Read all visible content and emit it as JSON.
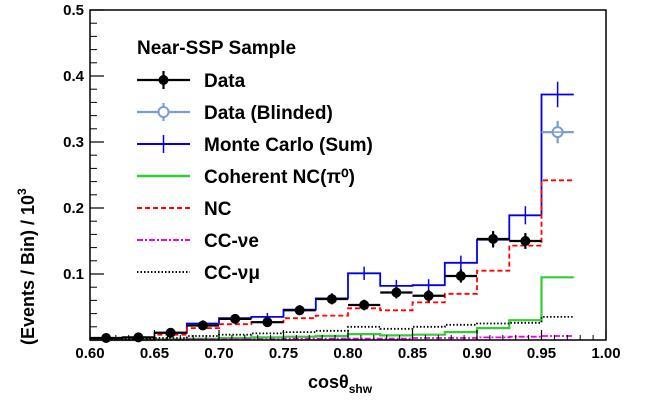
{
  "chart_data": {
    "type": "line",
    "xlabel": "cosθshw",
    "ylabel": "(Events / Bin) / 10³",
    "xlim": [
      0.6,
      1.0
    ],
    "ylim": [
      0,
      0.5
    ],
    "x_ticks": [
      "0.60",
      "0.65",
      "0.70",
      "0.75",
      "0.80",
      "0.85",
      "0.90",
      "0.95",
      "1.00"
    ],
    "y_ticks": [
      "0.1",
      "0.2",
      "0.3",
      "0.4",
      "0.5"
    ],
    "bin_edges": [
      0.6,
      0.625,
      0.65,
      0.675,
      0.7,
      0.725,
      0.75,
      0.775,
      0.8,
      0.825,
      0.85,
      0.875,
      0.9,
      0.925,
      0.95,
      0.975,
      1.0
    ],
    "legend": {
      "position": "upper-left",
      "header": "Near-SSP Sample",
      "entries": [
        {
          "key": "data",
          "label": "Data"
        },
        {
          "key": "data_blinded",
          "label": "Data (Blinded)"
        },
        {
          "key": "mc_sum",
          "label": "Monte Carlo (Sum)"
        },
        {
          "key": "coherent",
          "label": "Coherent NC(π⁰)"
        },
        {
          "key": "nc",
          "label": "NC"
        },
        {
          "key": "cc_nue",
          "label": "CC-νe"
        },
        {
          "key": "cc_numu",
          "label": "CC-νμ"
        }
      ]
    },
    "series": [
      {
        "key": "mc_sum",
        "color": "#0000ee",
        "style": "hist",
        "values": [
          0.002,
          0.004,
          0.011,
          0.025,
          0.033,
          0.035,
          0.046,
          0.063,
          0.101,
          0.082,
          0.083,
          0.117,
          0.152,
          0.189,
          0.372,
          null
        ]
      },
      {
        "key": "nc",
        "color": "#ff0000",
        "style": "hist-dashed",
        "values": [
          0.001,
          0.003,
          0.008,
          0.018,
          0.024,
          0.027,
          0.033,
          0.037,
          0.048,
          0.045,
          0.057,
          0.07,
          0.105,
          0.143,
          0.242,
          null
        ]
      },
      {
        "key": "coherent",
        "color": "#33cc33",
        "style": "hist",
        "values": [
          0.0,
          0.0,
          0.001,
          0.002,
          0.003,
          0.004,
          0.005,
          0.006,
          0.009,
          0.007,
          0.008,
          0.012,
          0.018,
          0.03,
          0.095,
          null
        ]
      },
      {
        "key": "cc_numu",
        "color": "#000000",
        "style": "hist-dotted",
        "values": [
          0.001,
          0.001,
          0.003,
          0.006,
          0.008,
          0.01,
          0.012,
          0.014,
          0.02,
          0.017,
          0.02,
          0.023,
          0.025,
          0.026,
          0.035,
          null
        ]
      },
      {
        "key": "cc_nue",
        "color": "#ee00ee",
        "style": "hist-dashdot",
        "values": [
          0.0,
          0.0,
          0.0,
          0.001,
          0.001,
          0.001,
          0.002,
          0.002,
          0.002,
          0.002,
          0.003,
          0.003,
          0.004,
          0.005,
          0.006,
          null
        ]
      },
      {
        "key": "data",
        "color": "#000000",
        "style": "points",
        "values": [
          0.003,
          0.004,
          0.011,
          0.022,
          0.032,
          0.027,
          0.045,
          0.062,
          0.053,
          0.072,
          0.067,
          0.097,
          0.153,
          0.15,
          null,
          null
        ],
        "errors": [
          0.001,
          0.002,
          0.003,
          0.005,
          0.006,
          0.006,
          0.007,
          0.008,
          0.008,
          0.009,
          0.009,
          0.01,
          0.012,
          0.012,
          null,
          null
        ]
      },
      {
        "key": "data_blinded",
        "color": "#7b9dd0",
        "style": "points-open",
        "values": [
          null,
          null,
          null,
          null,
          null,
          null,
          null,
          null,
          null,
          null,
          null,
          null,
          null,
          null,
          0.315,
          null
        ],
        "errors": [
          null,
          null,
          null,
          null,
          null,
          null,
          null,
          null,
          null,
          null,
          null,
          null,
          null,
          null,
          0.017,
          null
        ]
      }
    ]
  }
}
